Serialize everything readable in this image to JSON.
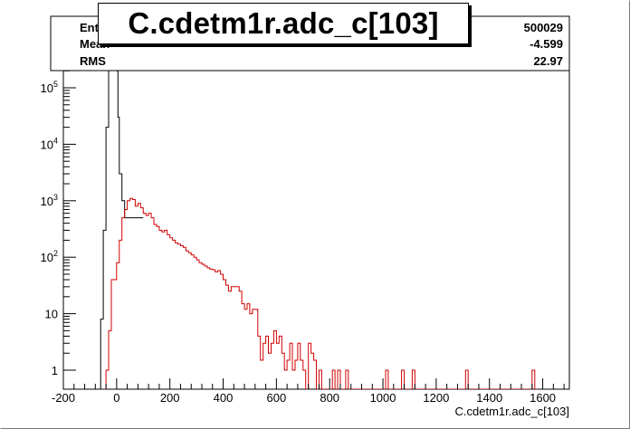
{
  "chart_data": {
    "type": "histogram",
    "title": "C.cdetm1r.adc_c[103]",
    "xlabel": "C.cdetm1r.adc_c[103]",
    "ylabel": "",
    "xlim": [
      -200,
      1700
    ],
    "ylog": true,
    "ylim": [
      0.5,
      400000
    ],
    "x_ticks": [
      -200,
      0,
      200,
      400,
      600,
      800,
      1000,
      1200,
      1400,
      1600
    ],
    "x_tick_labels": [
      "-200",
      "0",
      "200",
      "400",
      "600",
      "800",
      "1000",
      "1200",
      "1400",
      "1600"
    ],
    "y_ticks": [
      1,
      10,
      100,
      1000,
      10000,
      100000
    ],
    "y_tick_labels": [
      "1",
      "10",
      "10^2",
      "10^3",
      "10^4",
      "10^5"
    ],
    "stats": [
      {
        "label": "Entries",
        "value": "500029"
      },
      {
        "label": "Mean",
        "value": "-4.599"
      },
      {
        "label": "RMS",
        "value": "22.97"
      }
    ],
    "series": [
      {
        "color": "#000000",
        "points": [
          [
            -75,
            0.3
          ],
          [
            -65,
            0.3
          ],
          [
            -60,
            8
          ],
          [
            -50,
            300
          ],
          [
            -40,
            20000
          ],
          [
            -30,
            250000
          ],
          [
            -20,
            400000
          ],
          [
            -10,
            400000
          ],
          [
            0,
            200000
          ],
          [
            5,
            30000
          ],
          [
            10,
            3000
          ],
          [
            20,
            1000
          ],
          [
            30,
            500
          ],
          [
            40,
            500
          ],
          [
            50,
            500
          ],
          [
            60,
            500
          ],
          [
            70,
            500
          ],
          [
            80,
            500
          ],
          [
            90,
            500
          ]
        ]
      },
      {
        "color": "#d00000",
        "points": [
          [
            -50,
            0.3
          ],
          [
            -40,
            1
          ],
          [
            -30,
            5
          ],
          [
            -20,
            40
          ],
          [
            -10,
            40
          ],
          [
            0,
            80
          ],
          [
            10,
            200
          ],
          [
            20,
            500
          ],
          [
            30,
            700
          ],
          [
            40,
            1000
          ],
          [
            50,
            1100
          ],
          [
            60,
            1050
          ],
          [
            70,
            800
          ],
          [
            80,
            900
          ],
          [
            90,
            750
          ],
          [
            100,
            600
          ],
          [
            110,
            550
          ],
          [
            120,
            600
          ],
          [
            130,
            500
          ],
          [
            140,
            380
          ],
          [
            150,
            350
          ],
          [
            160,
            300
          ],
          [
            170,
            280
          ],
          [
            180,
            300
          ],
          [
            190,
            250
          ],
          [
            200,
            220
          ],
          [
            210,
            200
          ],
          [
            220,
            180
          ],
          [
            230,
            170
          ],
          [
            240,
            160
          ],
          [
            250,
            150
          ],
          [
            260,
            130
          ],
          [
            270,
            120
          ],
          [
            280,
            110
          ],
          [
            290,
            100
          ],
          [
            300,
            90
          ],
          [
            310,
            80
          ],
          [
            320,
            75
          ],
          [
            330,
            70
          ],
          [
            340,
            65
          ],
          [
            350,
            62
          ],
          [
            360,
            60
          ],
          [
            370,
            55
          ],
          [
            380,
            58
          ],
          [
            390,
            50
          ],
          [
            400,
            40
          ],
          [
            410,
            32
          ],
          [
            420,
            25
          ],
          [
            430,
            30
          ],
          [
            440,
            30
          ],
          [
            450,
            30
          ],
          [
            460,
            25
          ],
          [
            470,
            15
          ],
          [
            480,
            12
          ],
          [
            490,
            15
          ],
          [
            500,
            10
          ],
          [
            510,
            12
          ],
          [
            520,
            12
          ],
          [
            530,
            4
          ],
          [
            540,
            1.5
          ],
          [
            550,
            3
          ],
          [
            560,
            4
          ],
          [
            570,
            2
          ],
          [
            580,
            3
          ],
          [
            590,
            5
          ],
          [
            600,
            3
          ],
          [
            610,
            4
          ],
          [
            620,
            2
          ],
          [
            630,
            1
          ],
          [
            640,
            1.5
          ],
          [
            650,
            3
          ],
          [
            660,
            1
          ],
          [
            670,
            1.5
          ],
          [
            680,
            3
          ],
          [
            690,
            1.5
          ],
          [
            700,
            1
          ],
          [
            710,
            0.3
          ],
          [
            720,
            3
          ],
          [
            730,
            2
          ],
          [
            740,
            1.5
          ],
          [
            750,
            0.3
          ],
          [
            760,
            1
          ],
          [
            770,
            0.3
          ],
          [
            780,
            0.3
          ],
          [
            790,
            0.3
          ],
          [
            800,
            0.3
          ],
          [
            810,
            1
          ],
          [
            820,
            0.3
          ],
          [
            830,
            1
          ],
          [
            840,
            0.3
          ],
          [
            850,
            0.3
          ],
          [
            860,
            1
          ],
          [
            870,
            0.3
          ],
          [
            1000,
            0.3
          ],
          [
            1010,
            1
          ],
          [
            1020,
            0.3
          ],
          [
            1060,
            0.3
          ],
          [
            1070,
            1
          ],
          [
            1080,
            0.3
          ],
          [
            1100,
            0.3
          ],
          [
            1110,
            1
          ],
          [
            1120,
            0.3
          ],
          [
            1300,
            0.3
          ],
          [
            1310,
            1
          ],
          [
            1320,
            0.3
          ],
          [
            1550,
            0.3
          ],
          [
            1560,
            1
          ],
          [
            1570,
            0.3
          ]
        ]
      }
    ]
  }
}
